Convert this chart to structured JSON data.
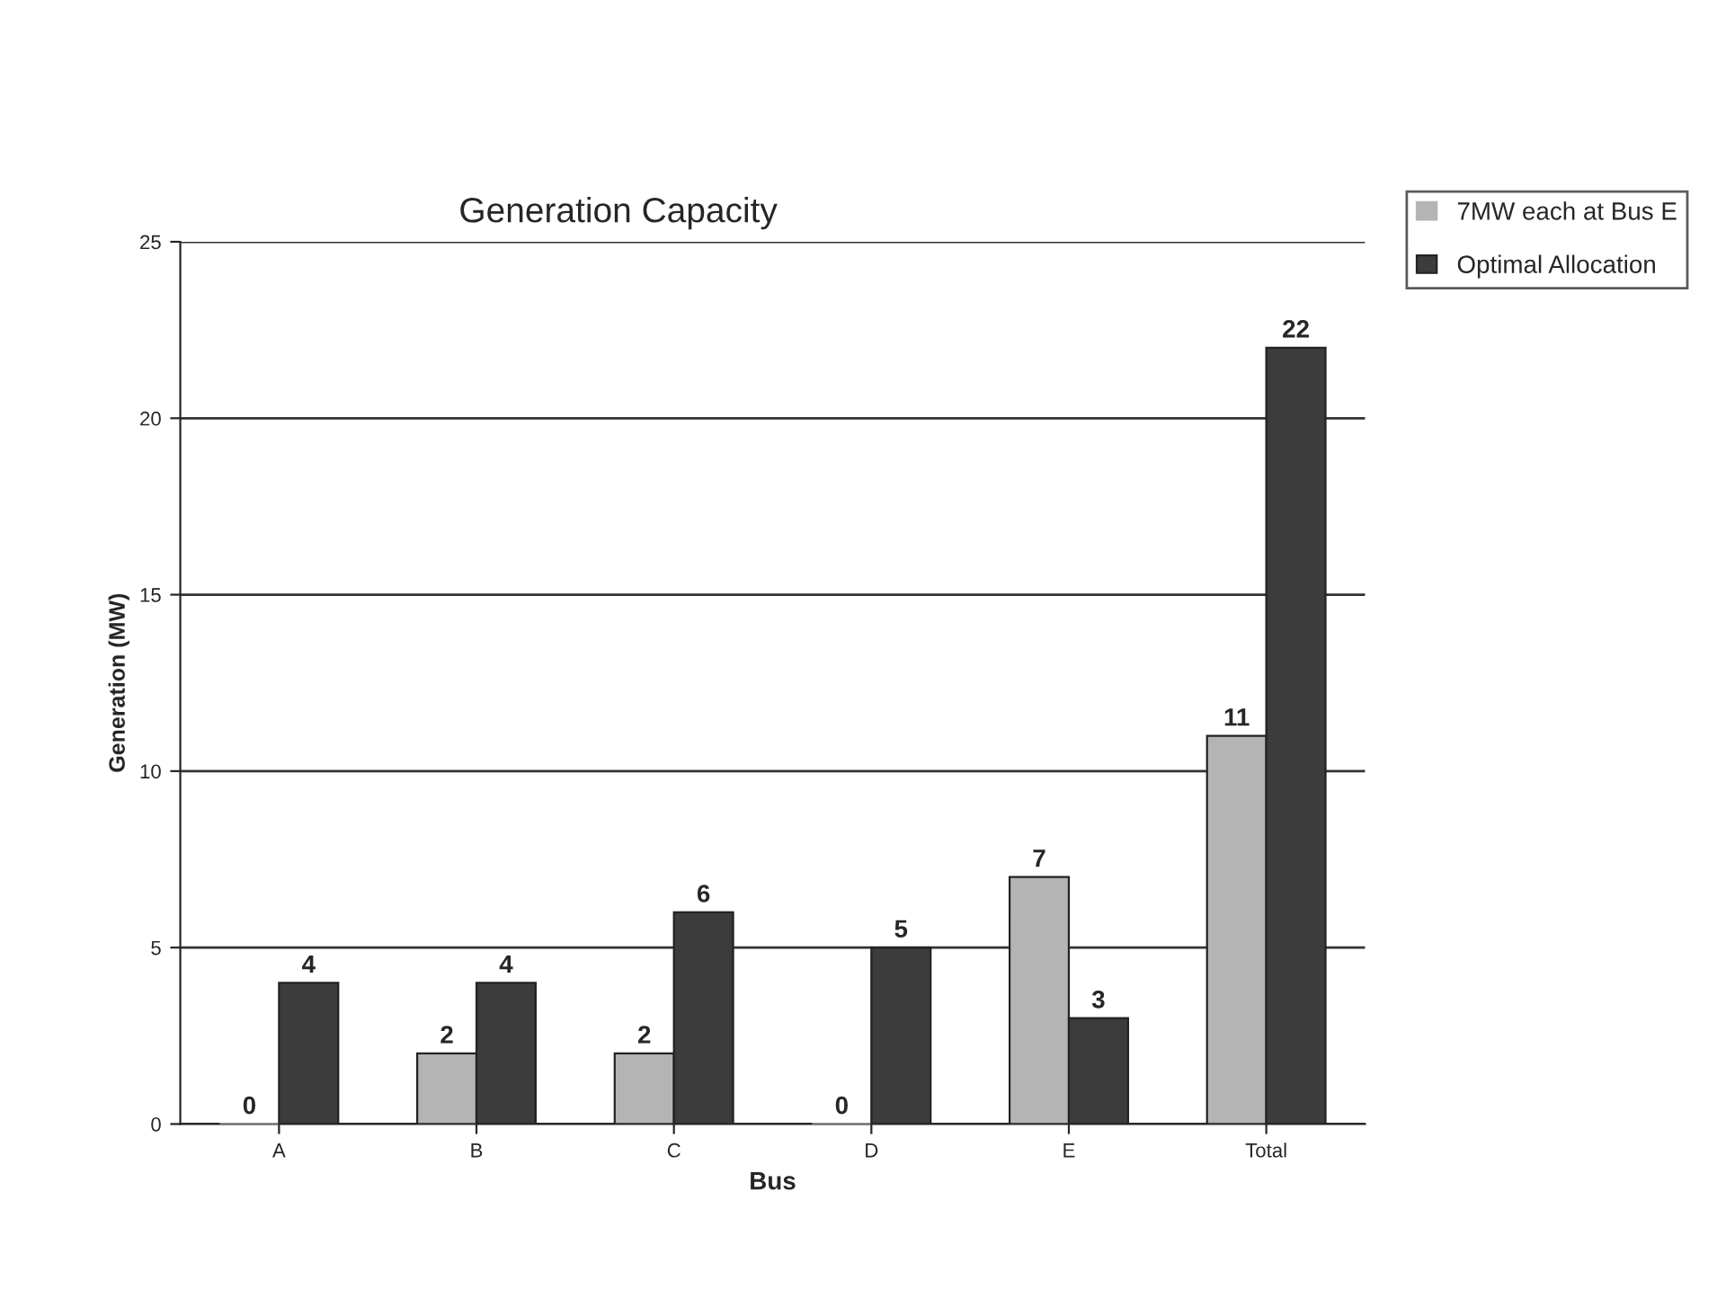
{
  "chart_data": {
    "type": "bar",
    "title": "Generation Capacity",
    "xlabel": "Bus",
    "ylabel": "Generation (MW)",
    "categories": [
      "A",
      "B",
      "C",
      "D",
      "E",
      "Total"
    ],
    "series": [
      {
        "name": "7MW each at Bus E",
        "color": "#b4b4b4",
        "values": [
          0,
          2,
          2,
          0,
          7,
          11
        ]
      },
      {
        "name": "Optimal Allocation",
        "color": "#3c3c3c",
        "values": [
          4,
          4,
          6,
          5,
          3,
          22
        ]
      }
    ],
    "ylim": [
      0,
      25
    ],
    "yticks": [
      0,
      5,
      10,
      15,
      20,
      25
    ],
    "grid": "y",
    "legend": "top right",
    "data_labels": true
  }
}
